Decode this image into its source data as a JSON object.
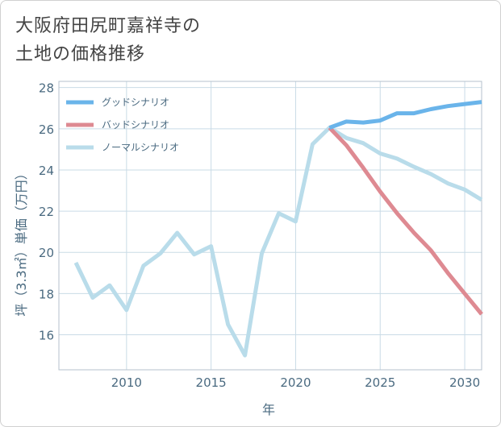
{
  "title": {
    "line1": "大阪府田尻町嘉祥寺の",
    "line2": "土地の価格推移"
  },
  "chart_data": {
    "type": "line",
    "xlabel": "年",
    "ylabel": "坪（3.3㎡）単価（万円）",
    "xlim": [
      2006,
      2031
    ],
    "ylim": [
      14.3,
      28.3
    ],
    "xticks": [
      2010,
      2015,
      2020,
      2025,
      2030
    ],
    "yticks": [
      16,
      18,
      20,
      22,
      24,
      26,
      28
    ],
    "grid": true,
    "legend_position": "top-left",
    "series": [
      {
        "name": "グッドシナリオ",
        "color": "#6ab4ea",
        "x": [
          2022,
          2023,
          2024,
          2025,
          2026,
          2027,
          2028,
          2029,
          2030,
          2031
        ],
        "y": [
          26.05,
          26.35,
          26.3,
          26.4,
          26.75,
          26.75,
          26.95,
          27.1,
          27.2,
          27.3
        ]
      },
      {
        "name": "バッドシナリオ",
        "color": "#de8a92",
        "x": [
          2022,
          2023,
          2024,
          2025,
          2026,
          2027,
          2028,
          2029,
          2030,
          2031
        ],
        "y": [
          26.05,
          25.2,
          24.1,
          22.95,
          21.9,
          20.95,
          20.1,
          19.0,
          18.0,
          17.0
        ]
      },
      {
        "name": "ノーマルシナリオ",
        "color": "#b9dcea",
        "x": [
          2007,
          2008,
          2009,
          2010,
          2011,
          2012,
          2013,
          2014,
          2015,
          2016,
          2017,
          2018,
          2019,
          2020,
          2021,
          2022,
          2023,
          2024,
          2025,
          2026,
          2027,
          2028,
          2029,
          2030,
          2031
        ],
        "y": [
          19.5,
          17.8,
          18.4,
          17.2,
          19.35,
          19.95,
          20.95,
          19.9,
          20.3,
          16.5,
          15.0,
          19.95,
          21.9,
          21.5,
          25.25,
          26.05,
          25.55,
          25.3,
          24.8,
          24.55,
          24.15,
          23.8,
          23.35,
          23.05,
          22.55
        ]
      }
    ]
  }
}
